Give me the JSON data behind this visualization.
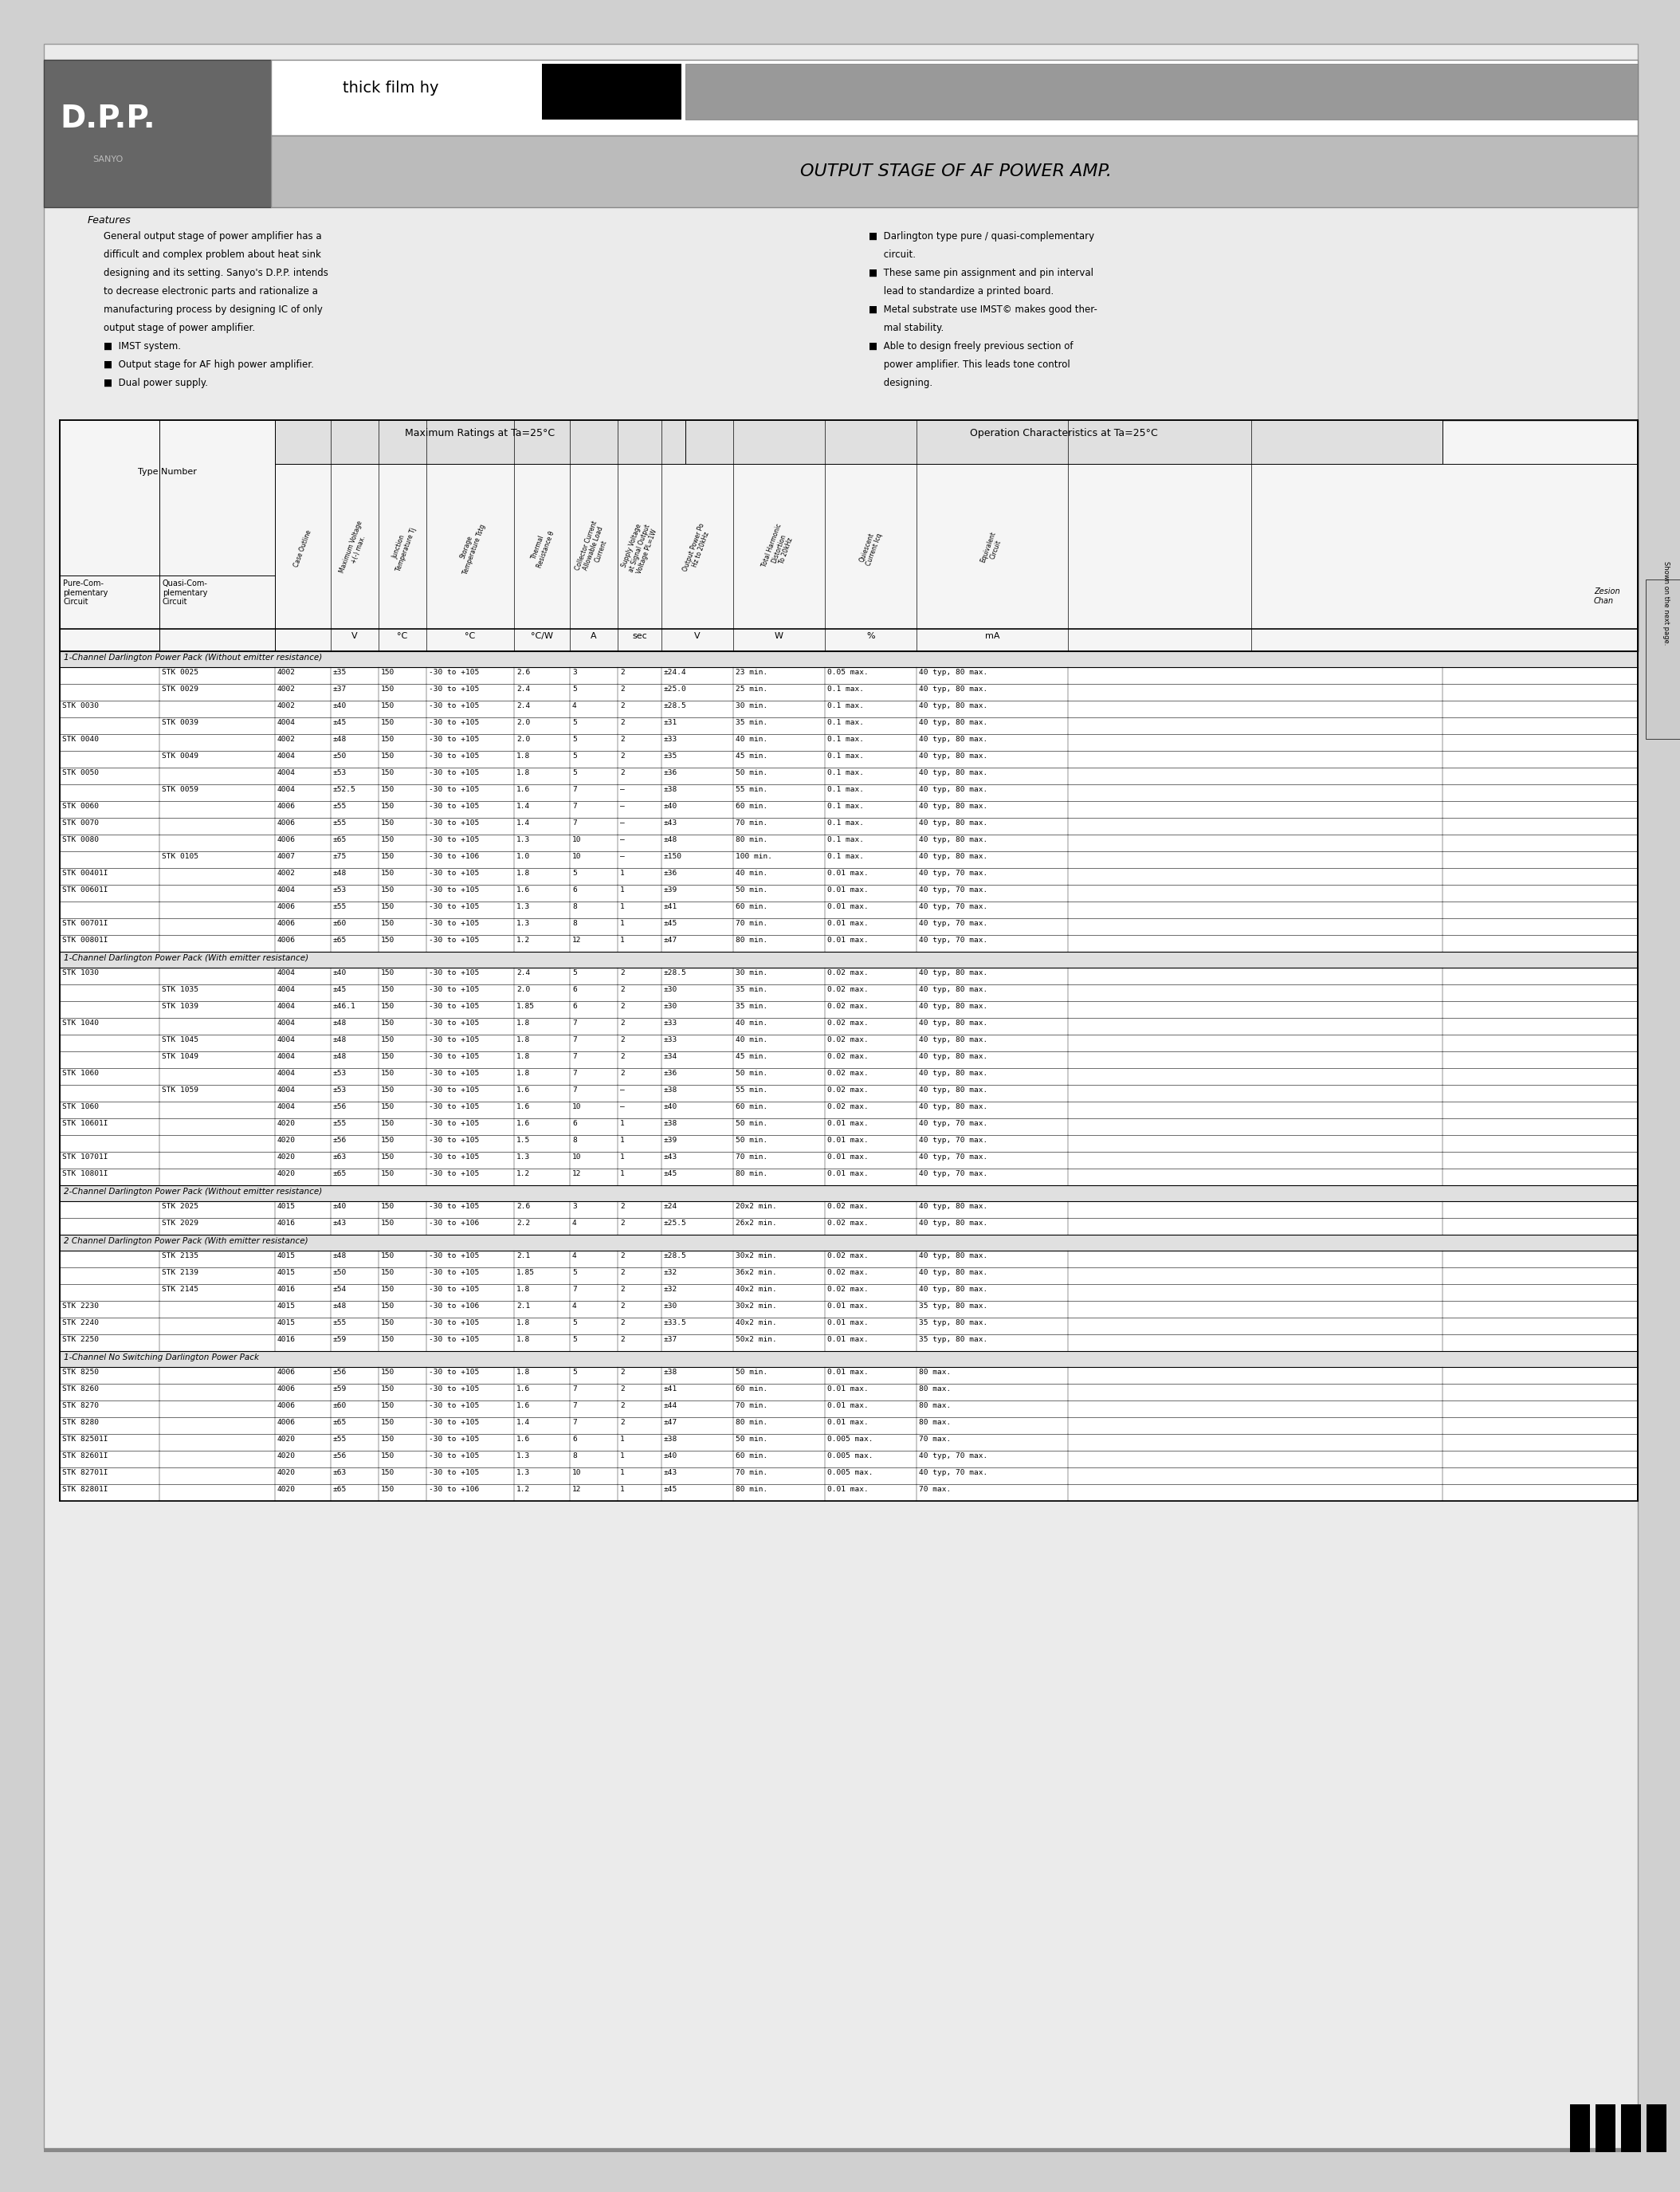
{
  "page_bg": "#cccccc",
  "title_text": "OUTPUT STAGE OF AF POWER AMP.",
  "thick_film_text": "thick film hy",
  "features_title": "Features",
  "table_header_top1": "Maximum Ratings at Ta=25°C",
  "table_header_top2": "Operation Characteristics at Ta=25°C",
  "section1_title": "1-Channel Darlington Power Pack (Without emitter resistance)",
  "section2_title": "1-Channel Darlington Power Pack (With emitter resistance)",
  "section3_title": "2-Channel Darlington Power Pack (Without emitter resistance)",
  "section4_title": "2 Channel Darlington Power Pack (With emitter resistance)",
  "section5_title": "1-Channel No Switching Darlington Power Pack",
  "s1_rows": [
    [
      "",
      "STK 0025",
      "4002",
      "±35",
      "150",
      "-30 to +105",
      "2.6",
      "3",
      "2",
      "±24.4",
      "23 min.",
      "0.05 max.",
      "40 typ, 80 max."
    ],
    [
      "",
      "STK 0029",
      "4002",
      "±37",
      "150",
      "-30 to +105",
      "2.4",
      "5",
      "2",
      "±25.0",
      "25 min.",
      "0.1 max.",
      "40 typ, 80 max."
    ],
    [
      "STK 0030",
      "",
      "4002",
      "±40",
      "150",
      "-30 to +105",
      "2.4",
      "4",
      "2",
      "±28.5",
      "30 min.",
      "0.1 max.",
      "40 typ, 80 max."
    ],
    [
      "",
      "STK 0039",
      "4004",
      "±45",
      "150",
      "-30 to +105",
      "2.0",
      "5",
      "2",
      "±31",
      "35 min.",
      "0.1 max.",
      "40 typ, 80 max."
    ],
    [
      "STK 0040",
      "",
      "4002",
      "±48",
      "150",
      "-30 to +105",
      "2.0",
      "5",
      "2",
      "±33",
      "40 min.",
      "0.1 max.",
      "40 typ, 80 max."
    ],
    [
      "",
      "STK 0049",
      "4004",
      "±50",
      "150",
      "-30 to +105",
      "1.8",
      "5",
      "2",
      "±35",
      "45 min.",
      "0.1 max.",
      "40 typ, 80 max."
    ],
    [
      "STK 0050",
      "",
      "4004",
      "±53",
      "150",
      "-30 to +105",
      "1.8",
      "5",
      "2",
      "±36",
      "50 min.",
      "0.1 max.",
      "40 typ, 80 max."
    ],
    [
      "",
      "STK 0059",
      "4004",
      "±52.5",
      "150",
      "-30 to +105",
      "1.6",
      "7",
      "–",
      "±38",
      "55 min.",
      "0.1 max.",
      "40 typ, 80 max."
    ],
    [
      "STK 0060",
      "",
      "4006",
      "±55",
      "150",
      "-30 to +105",
      "1.4",
      "7",
      "–",
      "±40",
      "60 min.",
      "0.1 max.",
      "40 typ, 80 max."
    ],
    [
      "STK 0070",
      "",
      "4006",
      "±55",
      "150",
      "-30 to +105",
      "1.4",
      "7",
      "–",
      "±43",
      "70 min.",
      "0.1 max.",
      "40 typ, 80 max."
    ],
    [
      "STK 0080",
      "",
      "4006",
      "±65",
      "150",
      "-30 to +105",
      "1.3",
      "10",
      "–",
      "±48",
      "80 min.",
      "0.1 max.",
      "40 typ, 80 max."
    ],
    [
      "",
      "STK 0105",
      "4007",
      "±75",
      "150",
      "-30 to +106",
      "1.0",
      "10",
      "–",
      "±150",
      "100 min.",
      "0.1 max.",
      "40 typ, 80 max."
    ]
  ],
  "s1ii_rows": [
    [
      "STK 00401I",
      "",
      "4002",
      "±48",
      "150",
      "-30 to +105",
      "1.8",
      "5",
      "1",
      "±36",
      "40 min.",
      "0.01 max.",
      "40 typ, 70 max."
    ],
    [
      "STK 00601I",
      "",
      "4004",
      "±53",
      "150",
      "-30 to +105",
      "1.6",
      "6",
      "1",
      "±39",
      "50 min.",
      "0.01 max.",
      "40 typ, 70 max."
    ],
    [
      "",
      "",
      "4006",
      "±55",
      "150",
      "-30 to +105",
      "1.3",
      "8",
      "1",
      "±41",
      "60 min.",
      "0.01 max.",
      "40 typ, 70 max."
    ],
    [
      "STK 00701I",
      "",
      "4006",
      "±60",
      "150",
      "-30 to +105",
      "1.3",
      "8",
      "1",
      "±45",
      "70 min.",
      "0.01 max.",
      "40 typ, 70 max."
    ],
    [
      "STK 00801I",
      "",
      "4006",
      "±65",
      "150",
      "-30 to +105",
      "1.2",
      "12",
      "1",
      "±47",
      "80 min.",
      "0.01 max.",
      "40 typ, 70 max."
    ]
  ],
  "s2_rows": [
    [
      "STK 1030",
      "",
      "4004",
      "±40",
      "150",
      "-30 to +105",
      "2.4",
      "5",
      "2",
      "±28.5",
      "30 min.",
      "0.02 max.",
      "40 typ, 80 max."
    ],
    [
      "",
      "STK 1035",
      "4004",
      "±45",
      "150",
      "-30 to +105",
      "2.0",
      "6",
      "2",
      "±30",
      "35 min.",
      "0.02 max.",
      "40 typ, 80 max."
    ],
    [
      "",
      "STK 1039",
      "4004",
      "±46.1",
      "150",
      "-30 to +105",
      "1.85",
      "6",
      "2",
      "±30",
      "35 min.",
      "0.02 max.",
      "40 typ, 80 max."
    ],
    [
      "STK 1040",
      "",
      "4004",
      "±48",
      "150",
      "-30 to +105",
      "1.8",
      "7",
      "2",
      "±33",
      "40 min.",
      "0.02 max.",
      "40 typ, 80 max."
    ],
    [
      "",
      "STK 1045",
      "4004",
      "±48",
      "150",
      "-30 to +105",
      "1.8",
      "7",
      "2",
      "±33",
      "40 min.",
      "0.02 max.",
      "40 typ, 80 max."
    ],
    [
      "",
      "STK 1049",
      "4004",
      "±48",
      "150",
      "-30 to +105",
      "1.8",
      "7",
      "2",
      "±34",
      "45 min.",
      "0.02 max.",
      "40 typ, 80 max."
    ],
    [
      "STK 1060",
      "",
      "4004",
      "±53",
      "150",
      "-30 to +105",
      "1.8",
      "7",
      "2",
      "±36",
      "50 min.",
      "0.02 max.",
      "40 typ, 80 max."
    ],
    [
      "",
      "STK 1059",
      "4004",
      "±53",
      "150",
      "-30 to +105",
      "1.6",
      "7",
      "–",
      "±38",
      "55 min.",
      "0.02 max.",
      "40 typ, 80 max."
    ],
    [
      "STK 1060",
      "",
      "4004",
      "±56",
      "150",
      "-30 to +105",
      "1.6",
      "10",
      "–",
      "±40",
      "60 min.",
      "0.02 max.",
      "40 typ, 80 max."
    ]
  ],
  "s2ii_rows": [
    [
      "STK 10601I",
      "",
      "4020",
      "±55",
      "150",
      "-30 to +105",
      "1.6",
      "6",
      "1",
      "±38",
      "50 min.",
      "0.01 max.",
      "40 typ, 70 max."
    ],
    [
      "",
      "",
      "4020",
      "±56",
      "150",
      "-30 to +105",
      "1.5",
      "8",
      "1",
      "±39",
      "50 min.",
      "0.01 max.",
      "40 typ, 70 max."
    ],
    [
      "STK 10701I",
      "",
      "4020",
      "±63",
      "150",
      "-30 to +105",
      "1.3",
      "10",
      "1",
      "±43",
      "70 min.",
      "0.01 max.",
      "40 typ, 70 max."
    ],
    [
      "STK 10801I",
      "",
      "4020",
      "±65",
      "150",
      "-30 to +105",
      "1.2",
      "12",
      "1",
      "±45",
      "80 min.",
      "0.01 max.",
      "40 typ, 70 max."
    ]
  ],
  "s3_rows": [
    [
      "",
      "STK 2025",
      "4015",
      "±40",
      "150",
      "-30 to +105",
      "2.6",
      "3",
      "2",
      "±24",
      "20x2 min.",
      "0.02 max.",
      "40 typ, 80 max."
    ],
    [
      "",
      "STK 2029",
      "4016",
      "±43",
      "150",
      "-30 to +106",
      "2.2",
      "4",
      "2",
      "±25.5",
      "26x2 min.",
      "0.02 max.",
      "40 typ, 80 max."
    ]
  ],
  "s4_rows": [
    [
      "",
      "STK 2135",
      "4015",
      "±48",
      "150",
      "-30 to +105",
      "2.1",
      "4",
      "2",
      "±28.5",
      "30x2 min.",
      "0.02 max.",
      "40 typ, 80 max."
    ],
    [
      "",
      "STK 2139",
      "4015",
      "±50",
      "150",
      "-30 to +105",
      "1.85",
      "5",
      "2",
      "±32",
      "36x2 min.",
      "0.02 max.",
      "40 typ, 80 max."
    ],
    [
      "",
      "STK 2145",
      "4016",
      "±54",
      "150",
      "-30 to +105",
      "1.8",
      "7",
      "2",
      "±32",
      "40x2 min.",
      "0.02 max.",
      "40 typ, 80 max."
    ],
    [
      "STK 2230",
      "",
      "4015",
      "±48",
      "150",
      "-30 to +106",
      "2.1",
      "4",
      "2",
      "±30",
      "30x2 min.",
      "0.01 max.",
      "35 typ, 80 max."
    ],
    [
      "STK 2240",
      "",
      "4015",
      "±55",
      "150",
      "-30 to +105",
      "1.8",
      "5",
      "2",
      "±33.5",
      "40x2 min.",
      "0.01 max.",
      "35 typ, 80 max."
    ],
    [
      "STK 2250",
      "",
      "4016",
      "±59",
      "150",
      "-30 to +105",
      "1.8",
      "5",
      "2",
      "±37",
      "50x2 min.",
      "0.01 max.",
      "35 typ, 80 max."
    ]
  ],
  "s5_rows": [
    [
      "STK 8250",
      "",
      "4006",
      "±56",
      "150",
      "-30 to +105",
      "1.8",
      "5",
      "2",
      "±38",
      "50 min.",
      "0.01 max.",
      "80 max."
    ],
    [
      "STK 8260",
      "",
      "4006",
      "±59",
      "150",
      "-30 to +105",
      "1.6",
      "7",
      "2",
      "±41",
      "60 min.",
      "0.01 max.",
      "80 max."
    ],
    [
      "STK 8270",
      "",
      "4006",
      "±60",
      "150",
      "-30 to +105",
      "1.6",
      "7",
      "2",
      "±44",
      "70 min.",
      "0.01 max.",
      "80 max."
    ],
    [
      "STK 8280",
      "",
      "4006",
      "±65",
      "150",
      "-30 to +105",
      "1.4",
      "7",
      "2",
      "±47",
      "80 min.",
      "0.01 max.",
      "80 max."
    ],
    [
      "STK 82501I",
      "",
      "4020",
      "±55",
      "150",
      "-30 to +105",
      "1.6",
      "6",
      "1",
      "±38",
      "50 min.",
      "0.005 max.",
      "70 max."
    ],
    [
      "STK 82601I",
      "",
      "4020",
      "±56",
      "150",
      "-30 to +105",
      "1.3",
      "8",
      "1",
      "±40",
      "60 min.",
      "0.005 max.",
      "40 typ, 70 max."
    ],
    [
      "STK 82701I",
      "",
      "4020",
      "±63",
      "150",
      "-30 to +105",
      "1.3",
      "10",
      "1",
      "±43",
      "70 min.",
      "0.005 max.",
      "40 typ, 70 max."
    ],
    [
      "STK 82801I",
      "",
      "4020",
      "±65",
      "150",
      "-30 to +106",
      "1.2",
      "12",
      "1",
      "±45",
      "80 min.",
      "0.01 max.",
      "70 max."
    ]
  ]
}
